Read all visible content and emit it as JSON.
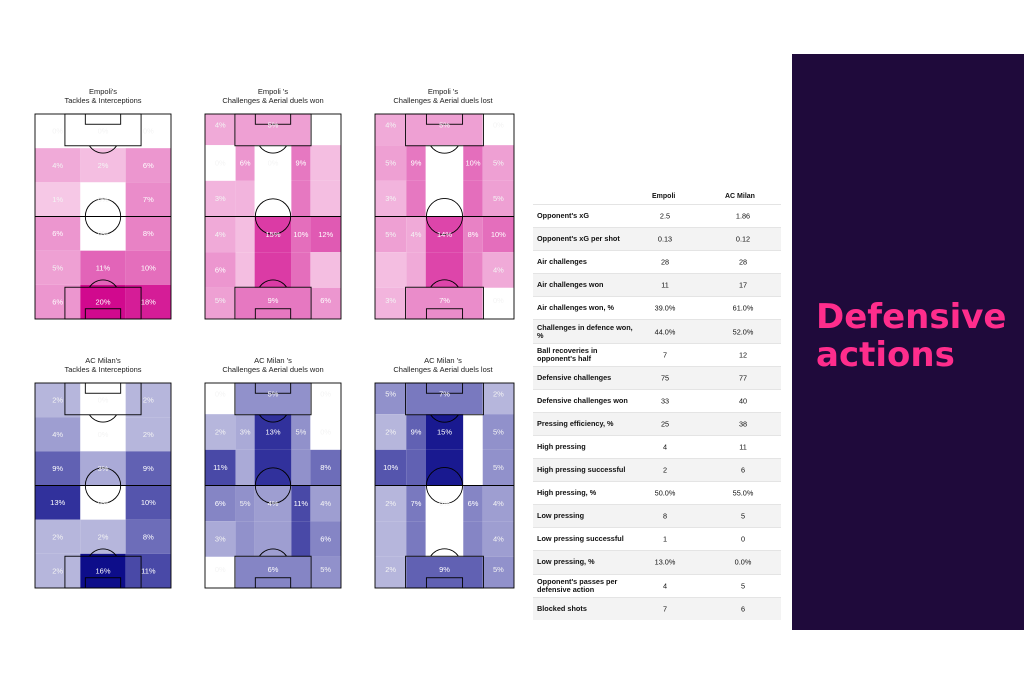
{
  "side_title_line1": "Defensive",
  "side_title_line2": "actions",
  "colors": {
    "panel_bg": "#1f0a3b",
    "accent": "#ff2d8c",
    "empoli_full": "#d1098e",
    "milan_full": "#0d0d8a"
  },
  "pitches": [
    {
      "title_line1": "Empoli's",
      "title_line2": "Tackles & Interceptions",
      "team": "empoli",
      "layout": "3x6",
      "cells": [
        [
          {
            "v": 0.0,
            "t": "0%"
          },
          {
            "v": 0.0,
            "t": "0%"
          },
          {
            "v": 0.0,
            "t": "0%"
          }
        ],
        [
          {
            "v": 0.04,
            "t": "4%"
          },
          {
            "v": 0.02,
            "t": "2%"
          },
          {
            "v": 0.06,
            "t": "6%"
          }
        ],
        [
          {
            "v": 0.01,
            "t": "1%"
          },
          {
            "v": 0.0,
            "t": "0%"
          },
          {
            "v": 0.07,
            "t": "7%"
          }
        ],
        [
          {
            "v": 0.06,
            "t": "6%"
          },
          {
            "v": 0.0,
            "t": "0%"
          },
          {
            "v": 0.08,
            "t": "8%"
          }
        ],
        [
          {
            "v": 0.05,
            "t": "5%"
          },
          {
            "v": 0.11,
            "t": "11%"
          },
          {
            "v": 0.1,
            "t": "10%"
          }
        ],
        [
          {
            "v": 0.06,
            "t": "6%"
          },
          {
            "v": 0.2,
            "t": "20%"
          },
          {
            "v": 0.18,
            "t": "18%"
          }
        ]
      ]
    },
    {
      "title_line1": "Empoli 's",
      "title_line2": "Challenges & Aerial duels won",
      "team": "empoli",
      "layout": "5x3",
      "cells": [
        [
          {
            "v": 0.04,
            "t": "4%"
          },
          {
            "v": 0.05,
            "t": "5%"
          },
          {
            "v": 0.0,
            "t": ""
          }
        ],
        [
          {
            "v": 0.0,
            "t": "0%"
          },
          {
            "v": 0.06,
            "t": "6%"
          },
          {
            "v": 0.0,
            "t": "0%"
          },
          {
            "v": 0.09,
            "t": "9%"
          },
          {
            "v": 0.02,
            "t": ""
          }
        ],
        [
          {
            "v": 0.03,
            "t": "3%"
          },
          {
            "v": 0.03,
            "t": ""
          },
          {
            "v": 0.0,
            "t": ""
          },
          {
            "v": 0.09,
            "t": ""
          },
          {
            "v": 0.02,
            "t": ""
          }
        ],
        [
          {
            "v": 0.04,
            "t": "4%"
          },
          {
            "v": 0.02,
            "t": ""
          },
          {
            "v": 0.15,
            "t": "15%"
          },
          {
            "v": 0.1,
            "t": "10%"
          },
          {
            "v": 0.12,
            "t": "12%"
          }
        ],
        [
          {
            "v": 0.06,
            "t": "6%"
          },
          {
            "v": 0.02,
            "t": ""
          },
          {
            "v": 0.15,
            "t": ""
          },
          {
            "v": 0.1,
            "t": ""
          },
          {
            "v": 0.02,
            "t": ""
          }
        ],
        [
          {
            "v": 0.05,
            "t": "5%"
          },
          {
            "v": 0.09,
            "t": "9%"
          },
          {
            "v": 0.06,
            "t": "6%"
          }
        ]
      ]
    },
    {
      "title_line1": "Empoli 's",
      "title_line2": "Challenges & Aerial duels lost",
      "team": "empoli",
      "layout": "5x3",
      "cells": [
        [
          {
            "v": 0.04,
            "t": "4%"
          },
          {
            "v": 0.05,
            "t": "5%"
          },
          {
            "v": 0.0,
            "t": "0%"
          }
        ],
        [
          {
            "v": 0.05,
            "t": "5%"
          },
          {
            "v": 0.09,
            "t": "9%"
          },
          {
            "v": 0.0,
            "t": ""
          },
          {
            "v": 0.1,
            "t": "10%"
          },
          {
            "v": 0.05,
            "t": "5%"
          }
        ],
        [
          {
            "v": 0.03,
            "t": "3%"
          },
          {
            "v": 0.09,
            "t": ""
          },
          {
            "v": 0.0,
            "t": ""
          },
          {
            "v": 0.1,
            "t": ""
          },
          {
            "v": 0.05,
            "t": "5%"
          }
        ],
        [
          {
            "v": 0.05,
            "t": "5%"
          },
          {
            "v": 0.04,
            "t": "4%"
          },
          {
            "v": 0.14,
            "t": "14%"
          },
          {
            "v": 0.08,
            "t": "8%"
          },
          {
            "v": 0.1,
            "t": "10%"
          }
        ],
        [
          {
            "v": 0.02,
            "t": ""
          },
          {
            "v": 0.04,
            "t": ""
          },
          {
            "v": 0.14,
            "t": ""
          },
          {
            "v": 0.08,
            "t": ""
          },
          {
            "v": 0.04,
            "t": "4%"
          }
        ],
        [
          {
            "v": 0.03,
            "t": "3%"
          },
          {
            "v": 0.07,
            "t": "7%"
          },
          {
            "v": 0.0,
            "t": "0%"
          }
        ]
      ]
    },
    {
      "title_line1": "AC Milan's",
      "title_line2": "Tackles & Interceptions",
      "team": "milan",
      "layout": "3x6",
      "cells": [
        [
          {
            "v": 0.02,
            "t": "2%"
          },
          {
            "v": 0.0,
            "t": "0%"
          },
          {
            "v": 0.02,
            "t": "2%"
          }
        ],
        [
          {
            "v": 0.04,
            "t": "4%"
          },
          {
            "v": 0.0,
            "t": "0%"
          },
          {
            "v": 0.02,
            "t": "2%"
          }
        ],
        [
          {
            "v": 0.09,
            "t": "9%"
          },
          {
            "v": 0.03,
            "t": "3%"
          },
          {
            "v": 0.09,
            "t": "9%"
          }
        ],
        [
          {
            "v": 0.13,
            "t": "13%"
          },
          {
            "v": 0.0,
            "t": "0%"
          },
          {
            "v": 0.1,
            "t": "10%"
          }
        ],
        [
          {
            "v": 0.02,
            "t": "2%"
          },
          {
            "v": 0.02,
            "t": "2%"
          },
          {
            "v": 0.08,
            "t": "8%"
          }
        ],
        [
          {
            "v": 0.02,
            "t": "2%"
          },
          {
            "v": 0.16,
            "t": "16%"
          },
          {
            "v": 0.11,
            "t": "11%"
          }
        ]
      ]
    },
    {
      "title_line1": "AC Milan 's",
      "title_line2": "Challenges & Aerial duels won",
      "team": "milan",
      "layout": "5x3",
      "cells": [
        [
          {
            "v": 0.0,
            "t": "0%"
          },
          {
            "v": 0.05,
            "t": "5%"
          },
          {
            "v": 0.0,
            "t": "0%"
          }
        ],
        [
          {
            "v": 0.02,
            "t": "2%"
          },
          {
            "v": 0.03,
            "t": "3%"
          },
          {
            "v": 0.13,
            "t": "13%"
          },
          {
            "v": 0.05,
            "t": "5%"
          },
          {
            "v": 0.0,
            "t": "0%"
          }
        ],
        [
          {
            "v": 0.11,
            "t": "11%"
          },
          {
            "v": 0.03,
            "t": ""
          },
          {
            "v": 0.13,
            "t": ""
          },
          {
            "v": 0.05,
            "t": ""
          },
          {
            "v": 0.08,
            "t": "8%"
          }
        ],
        [
          {
            "v": 0.06,
            "t": "6%"
          },
          {
            "v": 0.05,
            "t": "5%"
          },
          {
            "v": 0.04,
            "t": "4%"
          },
          {
            "v": 0.11,
            "t": "11%"
          },
          {
            "v": 0.04,
            "t": "4%"
          }
        ],
        [
          {
            "v": 0.03,
            "t": "3%"
          },
          {
            "v": 0.05,
            "t": ""
          },
          {
            "v": 0.04,
            "t": ""
          },
          {
            "v": 0.11,
            "t": ""
          },
          {
            "v": 0.06,
            "t": "6%"
          }
        ],
        [
          {
            "v": 0.0,
            "t": "0%"
          },
          {
            "v": 0.06,
            "t": "6%"
          },
          {
            "v": 0.05,
            "t": "5%"
          }
        ]
      ]
    },
    {
      "title_line1": "AC Milan 's",
      "title_line2": "Challenges & Aerial duels lost",
      "team": "milan",
      "layout": "5x3",
      "cells": [
        [
          {
            "v": 0.05,
            "t": "5%"
          },
          {
            "v": 0.07,
            "t": "7%"
          },
          {
            "v": 0.02,
            "t": "2%"
          }
        ],
        [
          {
            "v": 0.02,
            "t": "2%"
          },
          {
            "v": 0.09,
            "t": "9%"
          },
          {
            "v": 0.15,
            "t": "15%"
          },
          {
            "v": 0.0,
            "t": ""
          },
          {
            "v": 0.05,
            "t": "5%"
          }
        ],
        [
          {
            "v": 0.1,
            "t": "10%"
          },
          {
            "v": 0.09,
            "t": ""
          },
          {
            "v": 0.15,
            "t": ""
          },
          {
            "v": 0.0,
            "t": ""
          },
          {
            "v": 0.05,
            "t": "5%"
          }
        ],
        [
          {
            "v": 0.02,
            "t": "2%"
          },
          {
            "v": 0.07,
            "t": "7%"
          },
          {
            "v": 0.0,
            "t": "0%"
          },
          {
            "v": 0.06,
            "t": "6%"
          },
          {
            "v": 0.04,
            "t": "4%"
          }
        ],
        [
          {
            "v": 0.02,
            "t": ""
          },
          {
            "v": 0.07,
            "t": ""
          },
          {
            "v": 0.0,
            "t": ""
          },
          {
            "v": 0.06,
            "t": ""
          },
          {
            "v": 0.04,
            "t": "4%"
          }
        ],
        [
          {
            "v": 0.02,
            "t": "2%"
          },
          {
            "v": 0.09,
            "t": "9%"
          },
          {
            "v": 0.05,
            "t": "5%"
          }
        ]
      ]
    }
  ],
  "stats": {
    "team1": "Empoli",
    "team2": "AC Milan",
    "rows": [
      {
        "label": "Opponent's xG",
        "a": "2.5",
        "b": "1.86"
      },
      {
        "label": "Opponent's xG per shot",
        "a": "0.13",
        "b": "0.12"
      },
      {
        "label": "Air challenges",
        "a": "28",
        "b": "28"
      },
      {
        "label": "Air challenges won",
        "a": "11",
        "b": "17"
      },
      {
        "label": "Air challenges won, %",
        "a": "39.0%",
        "b": "61.0%"
      },
      {
        "label": "Challenges in defence won, %",
        "a": "44.0%",
        "b": "52.0%"
      },
      {
        "label": "Ball recoveries in opponent's half",
        "a": "7",
        "b": "12"
      },
      {
        "label": "Defensive challenges",
        "a": "75",
        "b": "77"
      },
      {
        "label": "Defensive challenges won",
        "a": "33",
        "b": "40"
      },
      {
        "label": "Pressing efficiency, %",
        "a": "25",
        "b": "38"
      },
      {
        "label": "High pressing",
        "a": "4",
        "b": "11"
      },
      {
        "label": "High pressing successful",
        "a": "2",
        "b": "6"
      },
      {
        "label": "High pressing, %",
        "a": "50.0%",
        "b": "55.0%"
      },
      {
        "label": "Low pressing",
        "a": "8",
        "b": "5"
      },
      {
        "label": "Low pressing successful",
        "a": "1",
        "b": "0"
      },
      {
        "label": "Low pressing, %",
        "a": "13.0%",
        "b": "0.0%"
      },
      {
        "label": "Opponent's passes per defensive action",
        "a": "4",
        "b": "5"
      },
      {
        "label": "Blocked shots",
        "a": "7",
        "b": "6"
      }
    ]
  }
}
